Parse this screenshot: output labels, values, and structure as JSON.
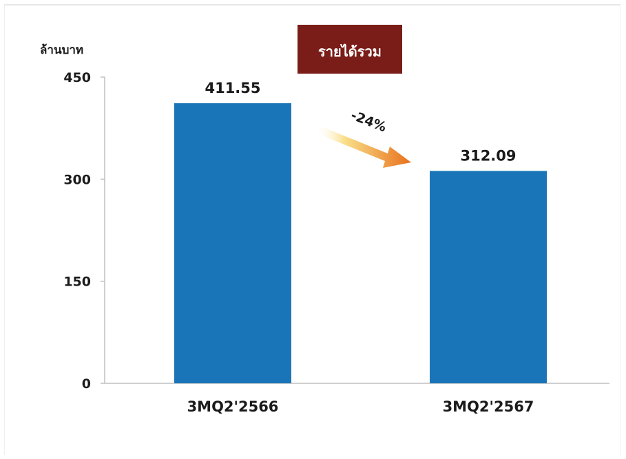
{
  "chart_data": {
    "type": "bar",
    "title": "รายได้รวม",
    "ylabel": "ล้านบาท",
    "xlabel": "",
    "categories": [
      "3MQ2'2566",
      "3MQ2'2567"
    ],
    "values": [
      411.55,
      312.09
    ],
    "value_labels": [
      "411.55",
      "312.09"
    ],
    "ylim": [
      0,
      450
    ],
    "yticks": [
      0,
      150,
      300,
      450
    ],
    "ytick_labels": [
      "0",
      "150",
      "300",
      "450"
    ],
    "grid": false,
    "legend": "none",
    "annotation": {
      "text": "-24%",
      "arrow": "from first bar to second bar, pointing down-right"
    },
    "colors": {
      "bar": "#1a75b8",
      "title_box": "#7a1c17",
      "title_text": "#ffffff",
      "arrow_start": "#f9e08a",
      "arrow_end": "#e8701c",
      "axis": "#bfbfbf",
      "text": "#1a1a1a"
    }
  }
}
